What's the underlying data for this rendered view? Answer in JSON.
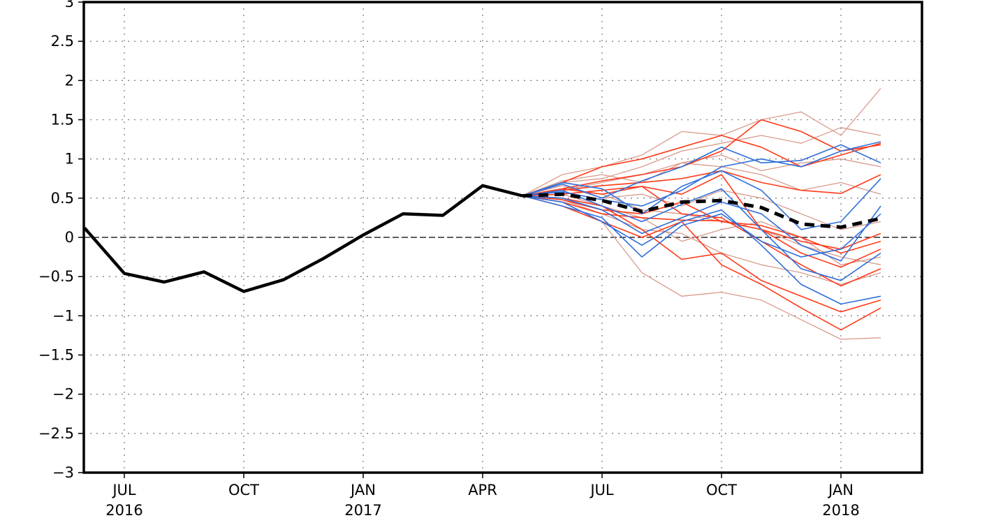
{
  "chart_data": {
    "type": "line",
    "title": "",
    "xlabel": "",
    "ylabel": "",
    "ylim": [
      -3,
      3
    ],
    "xlim": [
      "2016-06",
      "2018-03"
    ],
    "grid": true,
    "y_ticks": [
      "−3",
      "−2.5",
      "−2",
      "−1.5",
      "−1",
      "−0.5",
      "0",
      "0.5",
      "1",
      "1.5",
      "2",
      "2.5",
      "3"
    ],
    "x_ticks": [
      {
        "at": "2016-07",
        "label": "JUL",
        "year": "2016"
      },
      {
        "at": "2016-10",
        "label": "OCT",
        "year": ""
      },
      {
        "at": "2017-01",
        "label": "JAN",
        "year": "2017"
      },
      {
        "at": "2017-04",
        "label": "APR",
        "year": ""
      },
      {
        "at": "2017-07",
        "label": "JUL",
        "year": ""
      },
      {
        "at": "2017-10",
        "label": "OCT",
        "year": ""
      },
      {
        "at": "2018-01",
        "label": "JAN",
        "year": "2018"
      }
    ],
    "colors": {
      "observed": "#000000",
      "ensemble_mean": "#000000",
      "red_members": "#ff3a1a",
      "blue_members": "#2f6fdb",
      "light_members": "#d89a8c",
      "zero_line": "#000000",
      "grid": "#808080"
    },
    "series": [
      {
        "style": "observed",
        "x": [
          "2016-06",
          "2016-07",
          "2016-08",
          "2016-09",
          "2016-10",
          "2016-11",
          "2016-12",
          "2017-01",
          "2017-02",
          "2017-03",
          "2017-04",
          "2017-05"
        ],
        "values": [
          0.12,
          -0.46,
          -0.57,
          -0.44,
          -0.69,
          -0.54,
          -0.27,
          0.03,
          0.3,
          0.28,
          0.66,
          0.53
        ]
      },
      {
        "style": "ensemble_mean",
        "x": [
          "2017-05",
          "2017-06",
          "2017-07",
          "2017-08",
          "2017-09",
          "2017-10",
          "2017-11",
          "2017-12",
          "2018-01",
          "2018-02"
        ],
        "values": [
          0.53,
          0.55,
          0.47,
          0.33,
          0.45,
          0.47,
          0.38,
          0.17,
          0.13,
          0.24
        ]
      }
    ],
    "members_x": [
      "2017-05",
      "2017-06",
      "2017-07",
      "2017-08",
      "2017-09",
      "2017-10",
      "2017-11",
      "2017-12",
      "2018-01",
      "2018-02"
    ],
    "members": [
      {
        "group": "red",
        "values": [
          0.53,
          0.7,
          0.9,
          1.0,
          1.15,
          1.3,
          1.15,
          0.9,
          1.05,
          1.2
        ]
      },
      {
        "group": "red",
        "values": [
          0.53,
          0.62,
          0.72,
          0.8,
          0.9,
          1.1,
          1.5,
          1.35,
          1.1,
          1.18
        ]
      },
      {
        "group": "red",
        "values": [
          0.53,
          0.6,
          0.66,
          0.7,
          0.75,
          0.85,
          0.7,
          0.6,
          0.56,
          0.8
        ]
      },
      {
        "group": "red",
        "values": [
          0.53,
          0.45,
          0.3,
          0.25,
          0.22,
          0.21,
          0.1,
          -0.05,
          -0.15,
          0.05
        ]
      },
      {
        "group": "red",
        "values": [
          0.53,
          0.5,
          0.4,
          0.1,
          -0.28,
          -0.2,
          -0.55,
          -0.75,
          -0.95,
          -0.8
        ]
      },
      {
        "group": "red",
        "values": [
          0.53,
          0.4,
          0.2,
          0.0,
          0.2,
          -0.35,
          -0.6,
          -0.9,
          -1.18,
          -0.9
        ]
      },
      {
        "group": "red",
        "values": [
          0.53,
          0.55,
          0.6,
          0.65,
          0.55,
          0.8,
          0.1,
          -0.2,
          -0.38,
          -0.15
        ]
      },
      {
        "group": "red",
        "values": [
          0.53,
          0.48,
          0.35,
          0.3,
          0.45,
          0.2,
          0.15,
          0.0,
          -0.2,
          -0.05
        ]
      },
      {
        "group": "red",
        "values": [
          0.53,
          0.62,
          0.55,
          0.65,
          0.3,
          0.25,
          -0.05,
          -0.35,
          -0.62,
          -0.4
        ]
      },
      {
        "group": "blue",
        "values": [
          0.53,
          0.68,
          0.5,
          0.72,
          0.9,
          1.15,
          0.95,
          0.98,
          1.18,
          0.95
        ]
      },
      {
        "group": "blue",
        "values": [
          0.53,
          0.6,
          0.4,
          0.2,
          0.42,
          0.62,
          0.1,
          -0.4,
          -0.55,
          -0.2
        ]
      },
      {
        "group": "blue",
        "values": [
          0.53,
          0.45,
          0.2,
          -0.1,
          0.2,
          0.35,
          -0.1,
          -0.6,
          -0.85,
          -0.75
        ]
      },
      {
        "group": "blue",
        "values": [
          0.53,
          0.7,
          0.62,
          0.3,
          0.65,
          0.85,
          0.6,
          0.1,
          0.2,
          0.75
        ]
      },
      {
        "group": "blue",
        "values": [
          0.53,
          0.5,
          0.35,
          0.05,
          0.25,
          0.45,
          0.3,
          -0.1,
          -0.3,
          0.4
        ]
      },
      {
        "group": "blue",
        "values": [
          0.53,
          0.58,
          0.48,
          0.4,
          0.6,
          0.9,
          1.0,
          0.9,
          1.1,
          1.22
        ]
      },
      {
        "group": "blue",
        "values": [
          0.53,
          0.4,
          0.25,
          -0.25,
          0.15,
          0.3,
          -0.05,
          -0.25,
          -0.15,
          0.3
        ]
      },
      {
        "group": "light",
        "values": [
          0.53,
          0.8,
          0.9,
          1.05,
          1.35,
          1.3,
          1.5,
          1.6,
          1.3,
          1.9
        ]
      },
      {
        "group": "light",
        "values": [
          0.53,
          0.7,
          0.75,
          0.9,
          1.1,
          1.2,
          1.3,
          1.2,
          1.4,
          1.3
        ]
      },
      {
        "group": "light",
        "values": [
          0.53,
          0.62,
          0.55,
          0.35,
          0.3,
          0.2,
          0.1,
          -0.1,
          -0.25,
          -0.35
        ]
      },
      {
        "group": "light",
        "values": [
          0.53,
          0.45,
          0.2,
          -0.45,
          -0.75,
          -0.7,
          -0.8,
          -1.05,
          -1.3,
          -1.28
        ]
      },
      {
        "group": "light",
        "values": [
          0.53,
          0.6,
          0.7,
          0.8,
          0.95,
          0.9,
          0.8,
          0.6,
          0.7,
          0.55
        ]
      },
      {
        "group": "light",
        "values": [
          0.53,
          0.55,
          0.4,
          0.25,
          -0.05,
          0.1,
          0.2,
          0.0,
          -0.35,
          -0.25
        ]
      },
      {
        "group": "light",
        "values": [
          0.53,
          0.48,
          0.3,
          0.1,
          0.05,
          -0.2,
          -0.35,
          -0.45,
          -0.6,
          -0.45
        ]
      },
      {
        "group": "light",
        "values": [
          0.53,
          0.72,
          0.8,
          0.7,
          0.95,
          1.05,
          0.85,
          0.95,
          1.0,
          0.9
        ]
      },
      {
        "group": "light",
        "values": [
          0.53,
          0.66,
          0.5,
          0.55,
          0.4,
          0.6,
          0.5,
          0.3,
          0.1,
          0.2
        ]
      }
    ]
  }
}
